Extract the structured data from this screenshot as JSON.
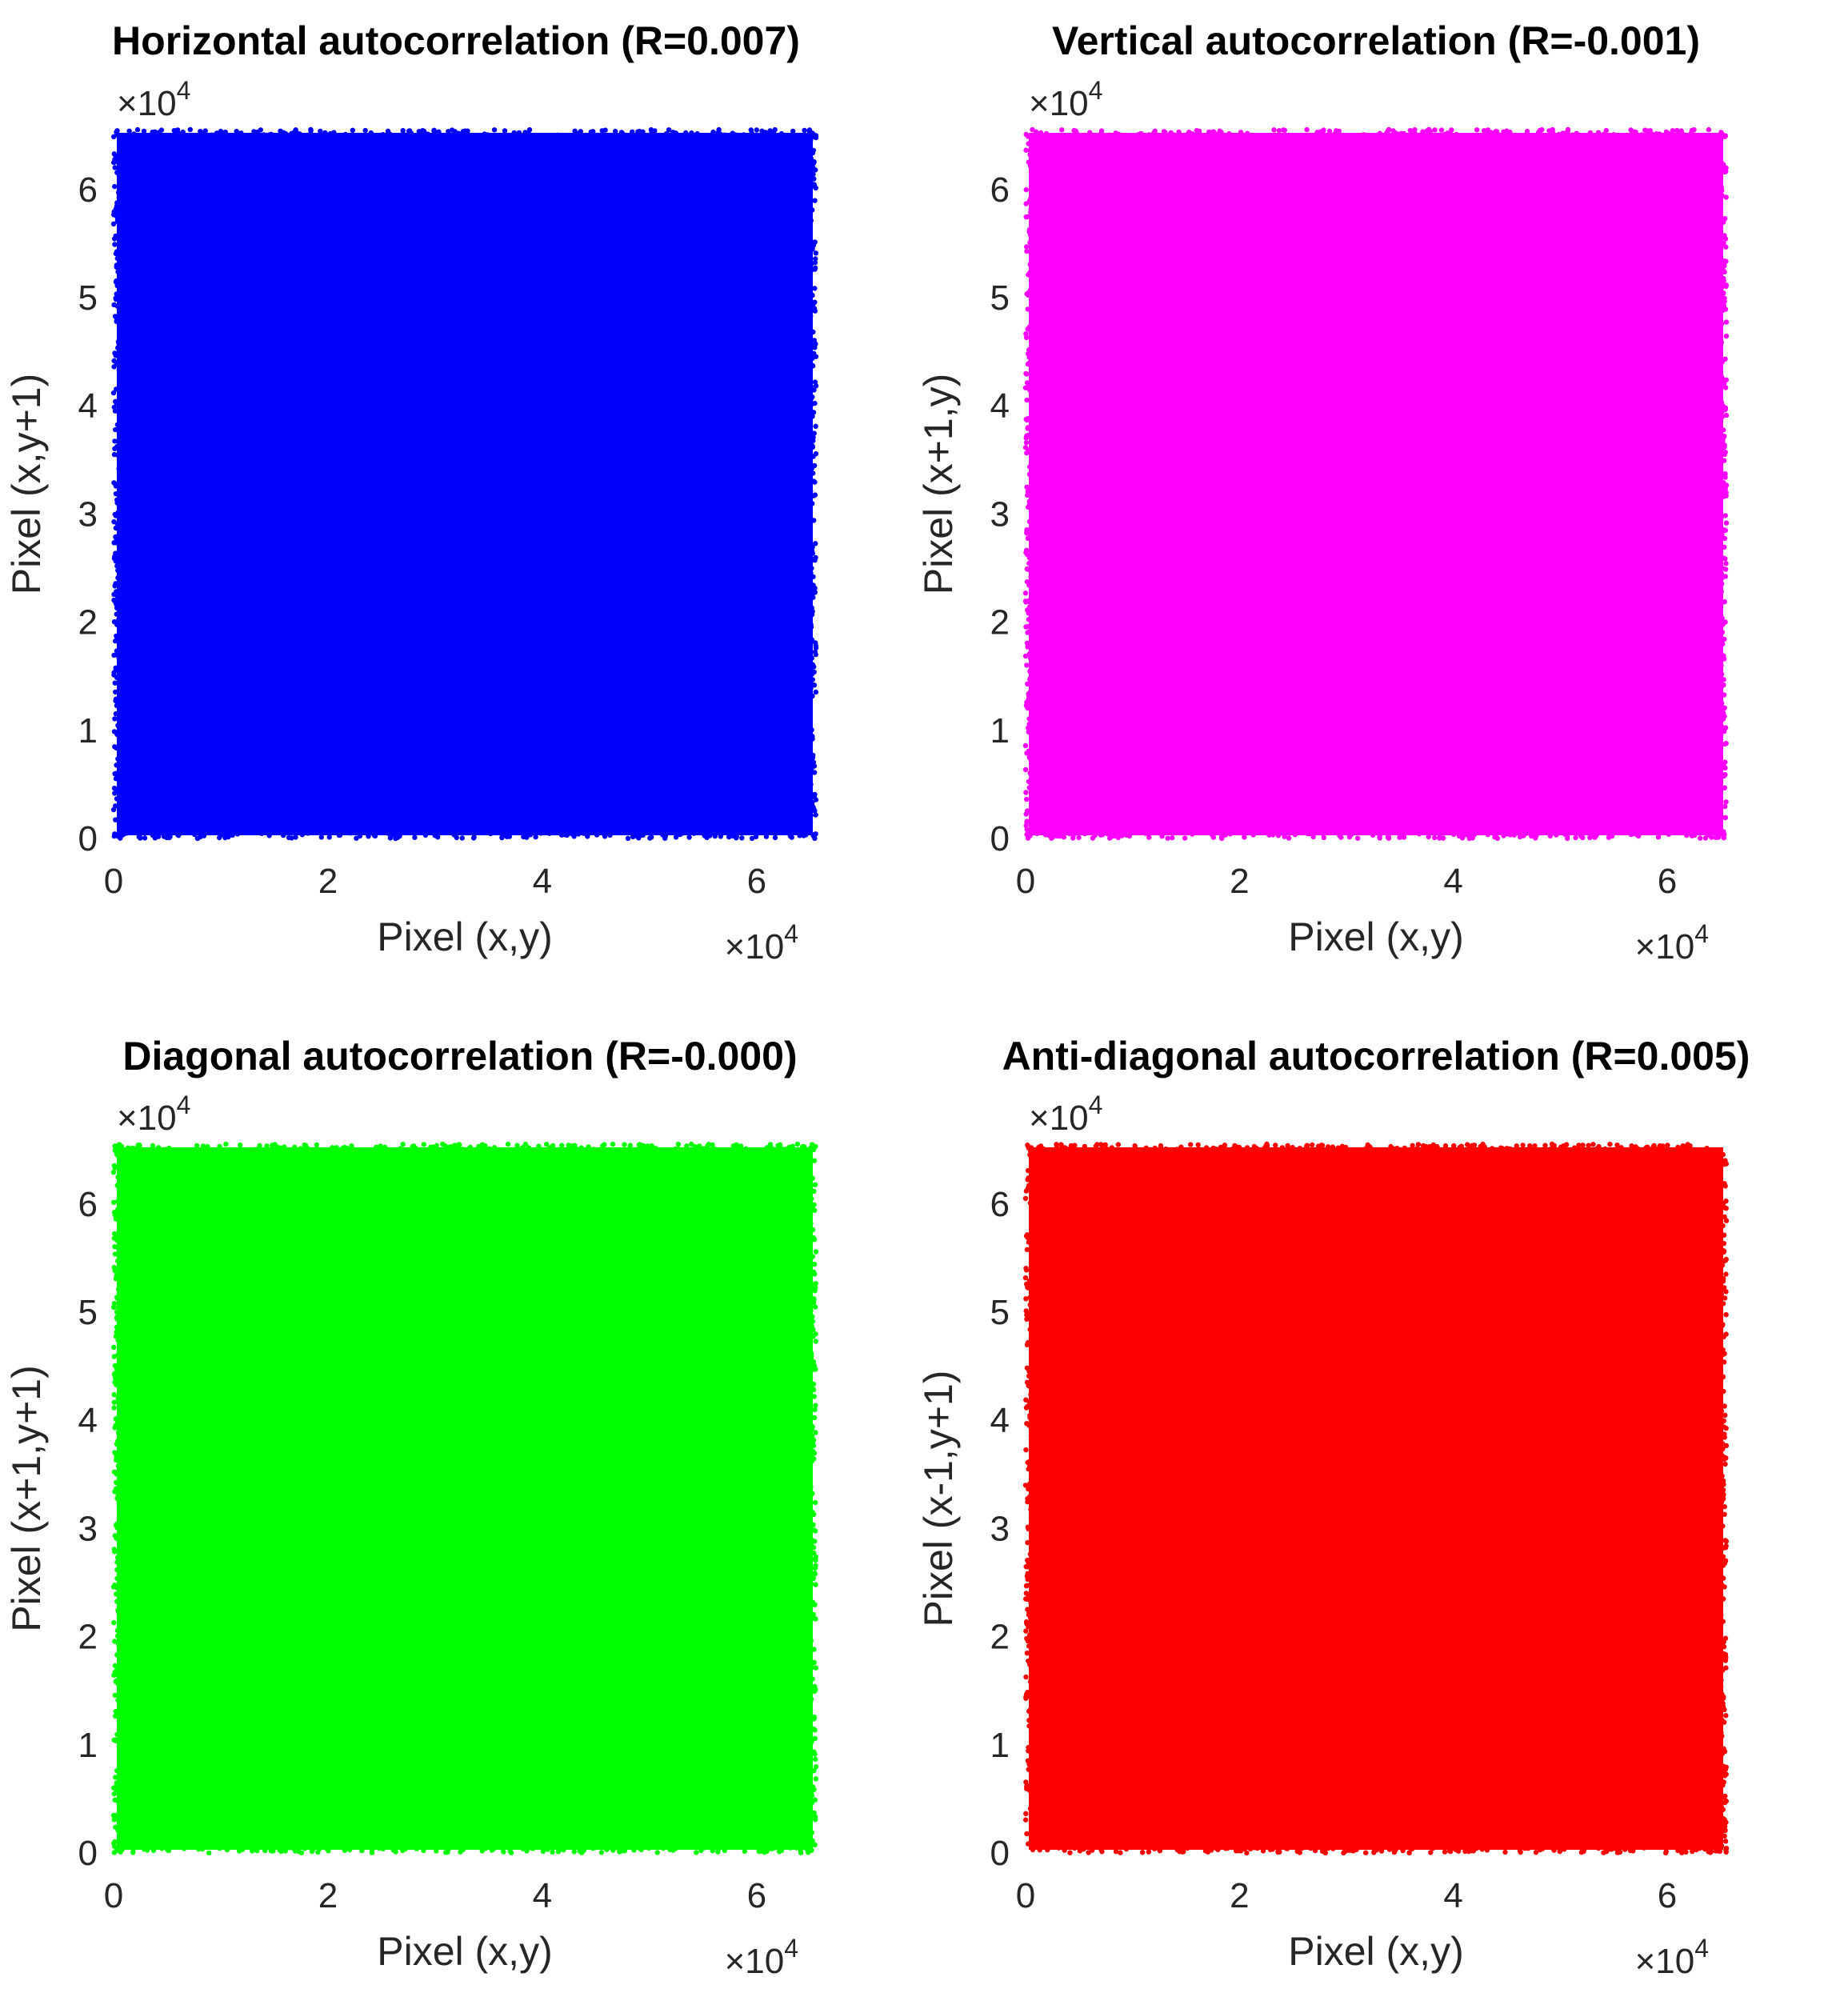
{
  "chart_data": [
    {
      "type": "scatter",
      "title": "Horizontal autocorrelation (R=0.007)",
      "xlabel": "Pixel (x,y)",
      "ylabel": "Pixel (x,y+1)",
      "xlim": [
        0,
        65535
      ],
      "ylim": [
        0,
        65535
      ],
      "xticks": [
        0,
        2,
        4,
        6
      ],
      "yticks": [
        0,
        1,
        2,
        3,
        4,
        5,
        6
      ],
      "x_exponent_base": "×10",
      "x_exponent_power": "4",
      "y_exponent_base": "×10",
      "y_exponent_power": "4",
      "color": "#0000ff",
      "distribution": "uniform random, fills full range [0, 65535] on both axes",
      "R": 0.007
    },
    {
      "type": "scatter",
      "title": "Vertical autocorrelation (R=-0.001)",
      "xlabel": "Pixel (x,y)",
      "ylabel": "Pixel (x+1,y)",
      "xlim": [
        0,
        65535
      ],
      "ylim": [
        0,
        65535
      ],
      "xticks": [
        0,
        2,
        4,
        6
      ],
      "yticks": [
        0,
        1,
        2,
        3,
        4,
        5,
        6
      ],
      "x_exponent_base": "×10",
      "x_exponent_power": "4",
      "y_exponent_base": "×10",
      "y_exponent_power": "4",
      "color": "#ff00ff",
      "distribution": "uniform random, fills full range [0, 65535] on both axes",
      "R": -0.001
    },
    {
      "type": "scatter",
      "title": "Diagonal autocorrelation (R=-0.000)",
      "xlabel": "Pixel (x,y)",
      "ylabel": "Pixel (x+1,y+1)",
      "xlim": [
        0,
        65535
      ],
      "ylim": [
        0,
        65535
      ],
      "xticks": [
        0,
        2,
        4,
        6
      ],
      "yticks": [
        0,
        1,
        2,
        3,
        4,
        5,
        6
      ],
      "x_exponent_base": "×10",
      "x_exponent_power": "4",
      "y_exponent_base": "×10",
      "y_exponent_power": "4",
      "color": "#00ff00",
      "distribution": "uniform random, fills full range [0, 65535] on both axes",
      "R": -0.0
    },
    {
      "type": "scatter",
      "title": "Anti-diagonal autocorrelation (R=0.005)",
      "xlabel": "Pixel (x,y)",
      "ylabel": "Pixel (x-1,y+1)",
      "xlim": [
        0,
        65535
      ],
      "ylim": [
        0,
        65535
      ],
      "xticks": [
        0,
        2,
        4,
        6
      ],
      "yticks": [
        0,
        1,
        2,
        3,
        4,
        5,
        6
      ],
      "x_exponent_base": "×10",
      "x_exponent_power": "4",
      "y_exponent_base": "×10",
      "y_exponent_power": "4",
      "color": "#ff0000",
      "distribution": "uniform random, fills full range [0, 65535] on both axes",
      "R": 0.005
    }
  ]
}
